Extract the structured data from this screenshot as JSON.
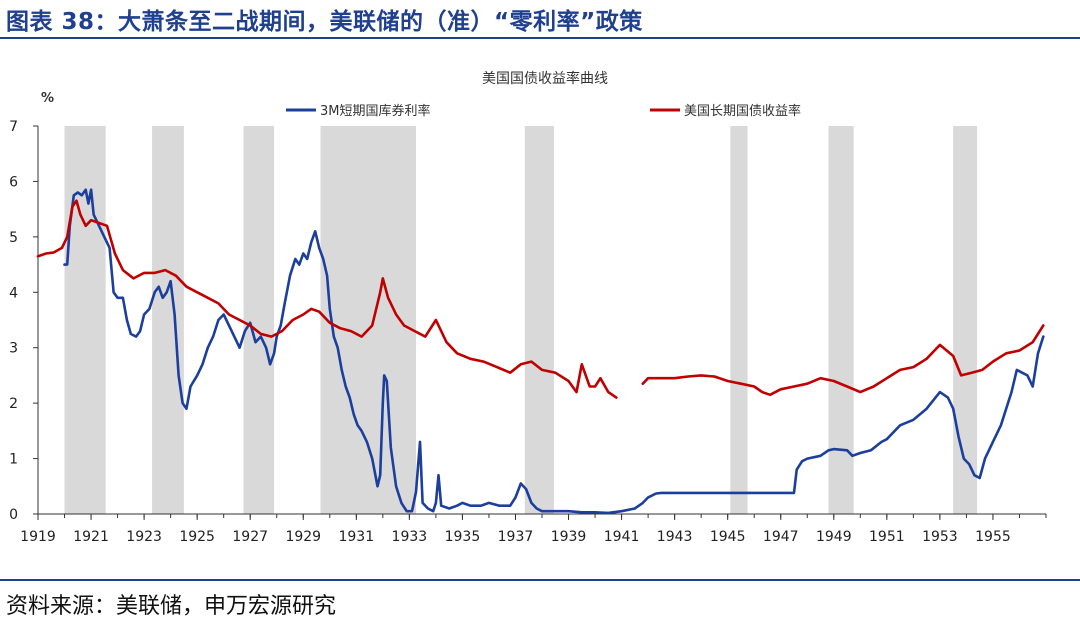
{
  "figure_title": "图表 38：大萧条至二战期间，美联储的（准）“零利率”政策",
  "source": "资料来源：美联储，申万宏源研究",
  "colors": {
    "title": "#1f3f8f",
    "short": "#1c3f9e",
    "long": "#c00000",
    "recession": "#d9d9d9",
    "axis": "#333333"
  },
  "chart_data": {
    "type": "line",
    "title": "美国国债收益率曲线",
    "ylabel": "%",
    "xlim": [
      1919,
      1957
    ],
    "ylim": [
      0,
      7
    ],
    "yticks": [
      0,
      1,
      2,
      3,
      4,
      5,
      6,
      7
    ],
    "xticks": [
      "1919",
      "1921",
      "1923",
      "1925",
      "1927",
      "1929",
      "1931",
      "1933",
      "1935",
      "1937",
      "1939",
      "1941",
      "1943",
      "1945",
      "1947",
      "1949",
      "1951",
      "1953",
      "1955"
    ],
    "legend_position": "top",
    "grid": false,
    "recessions": [
      [
        1920.0,
        1921.55
      ],
      [
        1923.3,
        1924.5
      ],
      [
        1926.75,
        1927.9
      ],
      [
        1929.65,
        1933.25
      ],
      [
        1937.35,
        1938.45
      ],
      [
        1945.1,
        1945.75
      ],
      [
        1948.8,
        1949.75
      ],
      [
        1953.5,
        1954.4
      ]
    ],
    "series": [
      {
        "name": "3M短期国库券利率",
        "color": "#1c3f9e",
        "points": [
          [
            1920.0,
            4.5
          ],
          [
            1920.1,
            4.5
          ],
          [
            1920.2,
            5.2
          ],
          [
            1920.35,
            5.75
          ],
          [
            1920.5,
            5.8
          ],
          [
            1920.65,
            5.75
          ],
          [
            1920.8,
            5.85
          ],
          [
            1920.9,
            5.6
          ],
          [
            1921.0,
            5.85
          ],
          [
            1921.1,
            5.4
          ],
          [
            1921.3,
            5.2
          ],
          [
            1921.5,
            5.0
          ],
          [
            1921.7,
            4.8
          ],
          [
            1921.85,
            4.0
          ],
          [
            1922.0,
            3.9
          ],
          [
            1922.2,
            3.9
          ],
          [
            1922.35,
            3.5
          ],
          [
            1922.5,
            3.25
          ],
          [
            1922.7,
            3.2
          ],
          [
            1922.85,
            3.3
          ],
          [
            1923.0,
            3.6
          ],
          [
            1923.2,
            3.7
          ],
          [
            1923.4,
            4.0
          ],
          [
            1923.55,
            4.1
          ],
          [
            1923.7,
            3.9
          ],
          [
            1923.85,
            4.0
          ],
          [
            1924.0,
            4.2
          ],
          [
            1924.15,
            3.6
          ],
          [
            1924.3,
            2.5
          ],
          [
            1924.45,
            2.0
          ],
          [
            1924.6,
            1.9
          ],
          [
            1924.75,
            2.3
          ],
          [
            1925.0,
            2.5
          ],
          [
            1925.2,
            2.7
          ],
          [
            1925.4,
            3.0
          ],
          [
            1925.6,
            3.2
          ],
          [
            1925.8,
            3.5
          ],
          [
            1926.0,
            3.6
          ],
          [
            1926.2,
            3.4
          ],
          [
            1926.4,
            3.2
          ],
          [
            1926.6,
            3.0
          ],
          [
            1926.8,
            3.3
          ],
          [
            1927.0,
            3.45
          ],
          [
            1927.2,
            3.1
          ],
          [
            1927.4,
            3.2
          ],
          [
            1927.6,
            3.0
          ],
          [
            1927.75,
            2.7
          ],
          [
            1927.9,
            2.9
          ],
          [
            1928.0,
            3.2
          ],
          [
            1928.15,
            3.4
          ],
          [
            1928.3,
            3.8
          ],
          [
            1928.5,
            4.3
          ],
          [
            1928.7,
            4.6
          ],
          [
            1928.85,
            4.5
          ],
          [
            1929.0,
            4.7
          ],
          [
            1929.15,
            4.6
          ],
          [
            1929.3,
            4.9
          ],
          [
            1929.45,
            5.1
          ],
          [
            1929.6,
            4.8
          ],
          [
            1929.75,
            4.6
          ],
          [
            1929.9,
            4.3
          ],
          [
            1930.0,
            3.7
          ],
          [
            1930.15,
            3.2
          ],
          [
            1930.3,
            3.0
          ],
          [
            1930.45,
            2.6
          ],
          [
            1930.6,
            2.3
          ],
          [
            1930.75,
            2.1
          ],
          [
            1930.9,
            1.8
          ],
          [
            1931.05,
            1.6
          ],
          [
            1931.2,
            1.5
          ],
          [
            1931.4,
            1.3
          ],
          [
            1931.6,
            1.0
          ],
          [
            1931.8,
            0.5
          ],
          [
            1931.9,
            0.7
          ],
          [
            1932.0,
            2.0
          ],
          [
            1932.05,
            2.5
          ],
          [
            1932.15,
            2.4
          ],
          [
            1932.3,
            1.2
          ],
          [
            1932.5,
            0.5
          ],
          [
            1932.7,
            0.2
          ],
          [
            1932.9,
            0.05
          ],
          [
            1933.1,
            0.05
          ],
          [
            1933.25,
            0.4
          ],
          [
            1933.4,
            1.3
          ],
          [
            1933.5,
            0.2
          ],
          [
            1933.7,
            0.1
          ],
          [
            1933.9,
            0.05
          ],
          [
            1934.0,
            0.2
          ],
          [
            1934.1,
            0.7
          ],
          [
            1934.2,
            0.15
          ],
          [
            1934.5,
            0.1
          ],
          [
            1934.8,
            0.15
          ],
          [
            1935.0,
            0.2
          ],
          [
            1935.3,
            0.15
          ],
          [
            1935.7,
            0.15
          ],
          [
            1936.0,
            0.2
          ],
          [
            1936.4,
            0.15
          ],
          [
            1936.8,
            0.15
          ],
          [
            1937.0,
            0.3
          ],
          [
            1937.2,
            0.55
          ],
          [
            1937.4,
            0.45
          ],
          [
            1937.6,
            0.2
          ],
          [
            1937.8,
            0.1
          ],
          [
            1938.0,
            0.05
          ],
          [
            1938.5,
            0.05
          ],
          [
            1939.0,
            0.05
          ],
          [
            1939.5,
            0.03
          ],
          [
            1940.0,
            0.03
          ],
          [
            1940.5,
            0.02
          ],
          [
            1941.0,
            0.05
          ],
          [
            1941.5,
            0.1
          ],
          [
            1941.8,
            0.2
          ],
          [
            1942.0,
            0.3
          ],
          [
            1942.3,
            0.37
          ],
          [
            1942.5,
            0.38
          ],
          [
            1943.0,
            0.38
          ],
          [
            1944.0,
            0.38
          ],
          [
            1945.0,
            0.38
          ],
          [
            1946.0,
            0.38
          ],
          [
            1947.0,
            0.38
          ],
          [
            1947.5,
            0.38
          ],
          [
            1947.6,
            0.8
          ],
          [
            1947.8,
            0.95
          ],
          [
            1948.0,
            1.0
          ],
          [
            1948.5,
            1.05
          ],
          [
            1948.8,
            1.15
          ],
          [
            1949.0,
            1.17
          ],
          [
            1949.5,
            1.15
          ],
          [
            1949.7,
            1.05
          ],
          [
            1950.0,
            1.1
          ],
          [
            1950.4,
            1.15
          ],
          [
            1950.8,
            1.3
          ],
          [
            1951.0,
            1.35
          ],
          [
            1951.5,
            1.6
          ],
          [
            1952.0,
            1.7
          ],
          [
            1952.5,
            1.9
          ],
          [
            1953.0,
            2.2
          ],
          [
            1953.3,
            2.1
          ],
          [
            1953.5,
            1.9
          ],
          [
            1953.7,
            1.4
          ],
          [
            1953.9,
            1.0
          ],
          [
            1954.1,
            0.9
          ],
          [
            1954.3,
            0.7
          ],
          [
            1954.5,
            0.65
          ],
          [
            1954.7,
            1.0
          ],
          [
            1955.0,
            1.3
          ],
          [
            1955.3,
            1.6
          ],
          [
            1955.5,
            1.9
          ],
          [
            1955.7,
            2.2
          ],
          [
            1955.9,
            2.6
          ],
          [
            1956.1,
            2.55
          ],
          [
            1956.3,
            2.5
          ],
          [
            1956.5,
            2.3
          ],
          [
            1956.7,
            2.9
          ],
          [
            1956.9,
            3.2
          ]
        ]
      },
      {
        "name": "美国长期国债收益率",
        "color": "#c00000",
        "points": [
          [
            1919.0,
            4.65
          ],
          [
            1919.3,
            4.7
          ],
          [
            1919.6,
            4.72
          ],
          [
            1919.9,
            4.8
          ],
          [
            1920.1,
            5.0
          ],
          [
            1920.3,
            5.55
          ],
          [
            1920.45,
            5.65
          ],
          [
            1920.6,
            5.4
          ],
          [
            1920.8,
            5.2
          ],
          [
            1921.0,
            5.3
          ],
          [
            1921.3,
            5.25
          ],
          [
            1921.6,
            5.2
          ],
          [
            1921.9,
            4.7
          ],
          [
            1922.2,
            4.4
          ],
          [
            1922.6,
            4.25
          ],
          [
            1923.0,
            4.35
          ],
          [
            1923.4,
            4.35
          ],
          [
            1923.8,
            4.4
          ],
          [
            1924.2,
            4.3
          ],
          [
            1924.6,
            4.1
          ],
          [
            1925.0,
            4.0
          ],
          [
            1925.4,
            3.9
          ],
          [
            1925.8,
            3.8
          ],
          [
            1926.2,
            3.6
          ],
          [
            1926.6,
            3.5
          ],
          [
            1927.0,
            3.4
          ],
          [
            1927.4,
            3.25
          ],
          [
            1927.8,
            3.2
          ],
          [
            1928.2,
            3.3
          ],
          [
            1928.6,
            3.5
          ],
          [
            1929.0,
            3.6
          ],
          [
            1929.3,
            3.7
          ],
          [
            1929.6,
            3.65
          ],
          [
            1930.0,
            3.45
          ],
          [
            1930.4,
            3.35
          ],
          [
            1930.8,
            3.3
          ],
          [
            1931.2,
            3.2
          ],
          [
            1931.6,
            3.4
          ],
          [
            1931.9,
            4.0
          ],
          [
            1932.0,
            4.25
          ],
          [
            1932.2,
            3.9
          ],
          [
            1932.5,
            3.6
          ],
          [
            1932.8,
            3.4
          ],
          [
            1933.2,
            3.3
          ],
          [
            1933.6,
            3.2
          ],
          [
            1934.0,
            3.5
          ],
          [
            1934.4,
            3.1
          ],
          [
            1934.8,
            2.9
          ],
          [
            1935.3,
            2.8
          ],
          [
            1935.8,
            2.75
          ],
          [
            1936.3,
            2.65
          ],
          [
            1936.8,
            2.55
          ],
          [
            1937.2,
            2.7
          ],
          [
            1937.6,
            2.75
          ],
          [
            1938.0,
            2.6
          ],
          [
            1938.5,
            2.55
          ],
          [
            1939.0,
            2.4
          ],
          [
            1939.3,
            2.2
          ],
          [
            1939.5,
            2.7
          ],
          [
            1939.8,
            2.3
          ],
          [
            1940.0,
            2.3
          ],
          [
            1940.2,
            2.45
          ],
          [
            1940.5,
            2.2
          ],
          [
            1940.8,
            2.1
          ],
          [
            null,
            null
          ],
          [
            1941.8,
            2.35
          ],
          [
            1942.0,
            2.45
          ],
          [
            1942.5,
            2.45
          ],
          [
            1943.0,
            2.45
          ],
          [
            1943.5,
            2.48
          ],
          [
            1944.0,
            2.5
          ],
          [
            1944.5,
            2.48
          ],
          [
            1945.0,
            2.4
          ],
          [
            1945.5,
            2.35
          ],
          [
            1946.0,
            2.3
          ],
          [
            1946.3,
            2.2
          ],
          [
            1946.6,
            2.15
          ],
          [
            1947.0,
            2.25
          ],
          [
            1947.5,
            2.3
          ],
          [
            1948.0,
            2.35
          ],
          [
            1948.5,
            2.45
          ],
          [
            1949.0,
            2.4
          ],
          [
            1949.5,
            2.3
          ],
          [
            1950.0,
            2.2
          ],
          [
            1950.5,
            2.3
          ],
          [
            1951.0,
            2.45
          ],
          [
            1951.5,
            2.6
          ],
          [
            1952.0,
            2.65
          ],
          [
            1952.5,
            2.8
          ],
          [
            1953.0,
            3.05
          ],
          [
            1953.5,
            2.85
          ],
          [
            1953.8,
            2.5
          ],
          [
            1954.2,
            2.55
          ],
          [
            1954.6,
            2.6
          ],
          [
            1955.0,
            2.75
          ],
          [
            1955.5,
            2.9
          ],
          [
            1956.0,
            2.95
          ],
          [
            1956.5,
            3.1
          ],
          [
            1956.9,
            3.4
          ]
        ]
      }
    ]
  }
}
